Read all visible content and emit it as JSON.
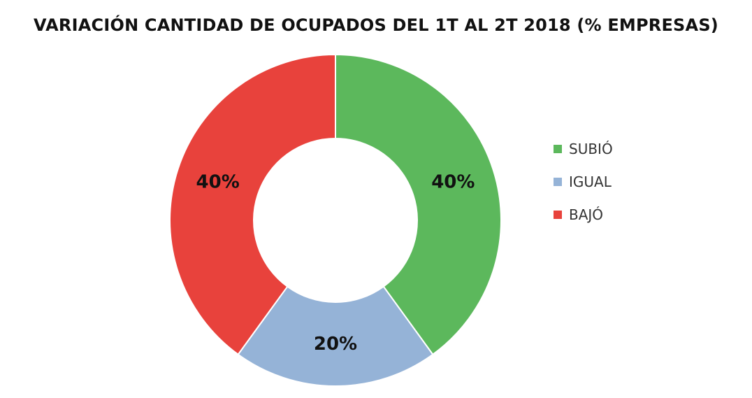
{
  "chart_data": {
    "type": "pie",
    "variant": "donut",
    "title": "VARIACIÓN CANTIDAD DE OCUPADOS DEL 1T AL 2T 2018 (% EMPRESAS)",
    "categories": [
      "SUBIÓ",
      "IGUAL",
      "BAJÓ"
    ],
    "values": [
      40,
      20,
      40
    ],
    "data_labels": [
      "40%",
      "20%",
      "40%"
    ],
    "colors": [
      "#5cb85c",
      "#95b3d7",
      "#e8423c"
    ],
    "legend_position": "right"
  }
}
